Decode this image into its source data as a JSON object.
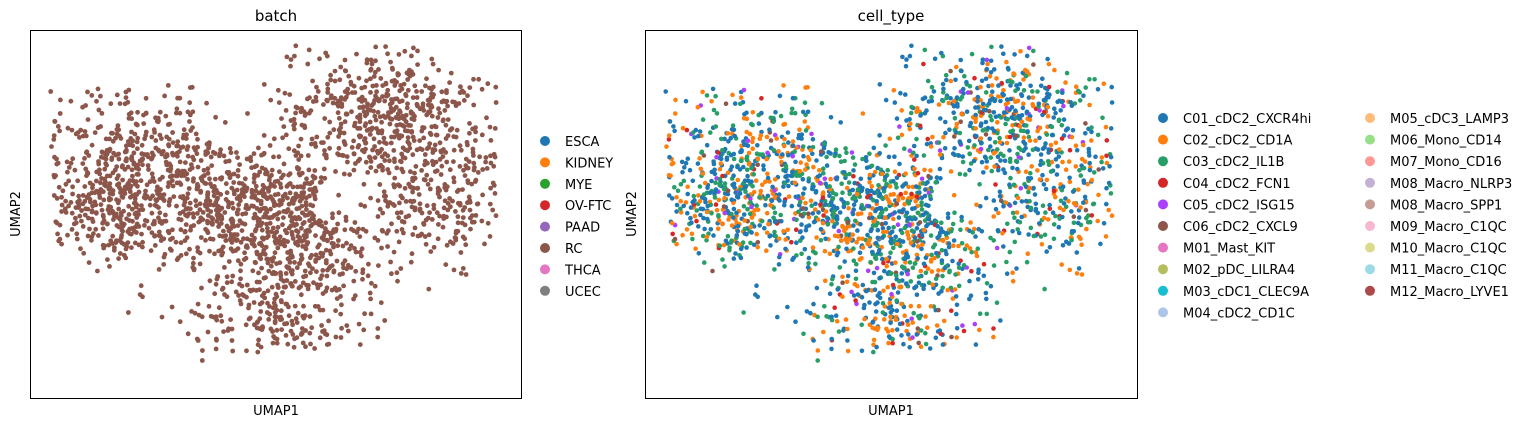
{
  "chart_data": [
    {
      "type": "scatter",
      "title": "batch",
      "xlabel": "UMAP1",
      "ylabel": "UMAP2",
      "grid": false,
      "ticks": false,
      "legend_position": "right",
      "legend": [
        {
          "label": "ESCA",
          "color": "#1f77b4"
        },
        {
          "label": "KIDNEY",
          "color": "#ff7f0e"
        },
        {
          "label": "MYE",
          "color": "#2ca02c"
        },
        {
          "label": "OV-FTC",
          "color": "#d62728"
        },
        {
          "label": "PAAD",
          "color": "#9467bd"
        },
        {
          "label": "RC",
          "color": "#8c564b"
        },
        {
          "label": "THCA",
          "color": "#e377c2"
        },
        {
          "label": "UCEC",
          "color": "#7f7f7f"
        }
      ],
      "point_color_by_category": "RC"
    },
    {
      "type": "scatter",
      "title": "cell_type",
      "xlabel": "UMAP1",
      "ylabel": "UMAP2",
      "grid": false,
      "ticks": false,
      "legend_position": "right",
      "legend_columns": 2,
      "legend": [
        {
          "label": "C01_cDC2_CXCR4hi",
          "color": "#1f77b4"
        },
        {
          "label": "C02_cDC2_CD1A",
          "color": "#ff7f0e"
        },
        {
          "label": "C03_cDC2_IL1B",
          "color": "#279e68"
        },
        {
          "label": "C04_cDC2_FCN1",
          "color": "#d62728"
        },
        {
          "label": "C05_cDC2_ISG15",
          "color": "#aa40fc"
        },
        {
          "label": "C06_cDC2_CXCL9",
          "color": "#8c564b"
        },
        {
          "label": "M01_Mast_KIT",
          "color": "#e377c2"
        },
        {
          "label": "M02_pDC_LILRA4",
          "color": "#b5bd61"
        },
        {
          "label": "M03_cDC1_CLEC9A",
          "color": "#17becf"
        },
        {
          "label": "M04_cDC2_CD1C",
          "color": "#aec7e8"
        },
        {
          "label": "M05_cDC3_LAMP3",
          "color": "#ffbb78"
        },
        {
          "label": "M06_Mono_CD14",
          "color": "#98df8a"
        },
        {
          "label": "M07_Mono_CD16",
          "color": "#ff9896"
        },
        {
          "label": "M08_Macro_NLRP3",
          "color": "#c5b0d5"
        },
        {
          "label": "M08_Macro_SPP1",
          "color": "#c49c94"
        },
        {
          "label": "M09_Macro_C1QC",
          "color": "#f7b6d2"
        },
        {
          "label": "M10_Macro_C1QC",
          "color": "#dbdb8d"
        },
        {
          "label": "M11_Macro_C1QC",
          "color": "#9edae5"
        },
        {
          "label": "M12_Macro_LYVE1",
          "color": "#ad494a"
        }
      ],
      "point_colors_mix": [
        {
          "label": "C01_cDC2_CXCR4hi",
          "weight": 0.42
        },
        {
          "label": "C02_cDC2_CD1A",
          "weight": 0.25
        },
        {
          "label": "C03_cDC2_IL1B",
          "weight": 0.24
        },
        {
          "label": "C04_cDC2_FCN1",
          "weight": 0.03
        },
        {
          "label": "C05_cDC2_ISG15",
          "weight": 0.03
        },
        {
          "label": "C06_cDC2_CXCL9",
          "weight": 0.03
        }
      ]
    }
  ]
}
